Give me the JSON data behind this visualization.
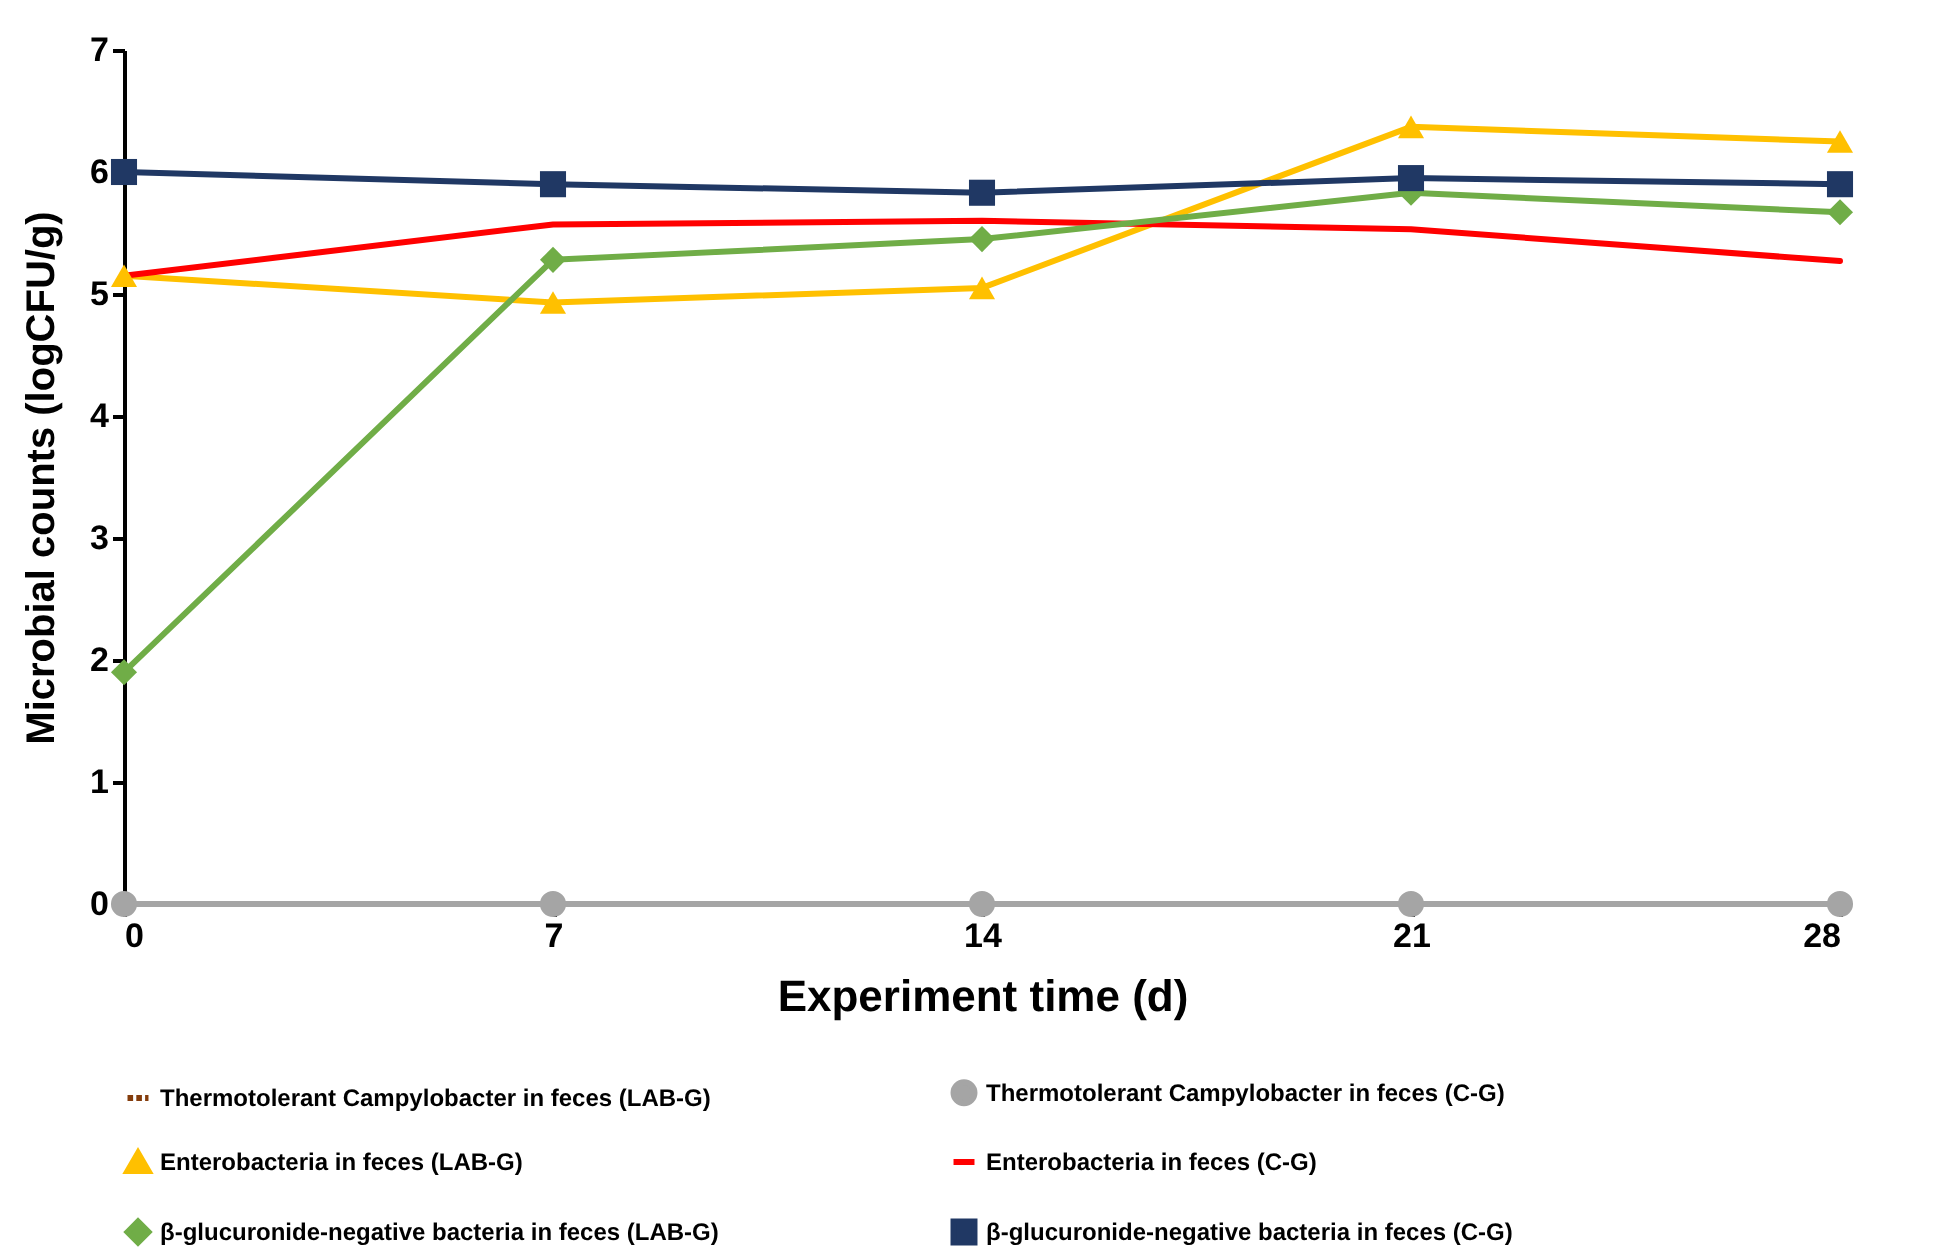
{
  "chart_data": {
    "type": "line",
    "xlabel": "Experiment time (d)",
    "ylabel": "Microbial counts (logCFU/g)",
    "x": [
      0,
      7,
      14,
      21,
      28
    ],
    "xlim": [
      0,
      28
    ],
    "xticks": [
      0,
      7,
      14,
      21,
      28
    ],
    "ylim": [
      0,
      7
    ],
    "yticks": [
      0,
      1,
      2,
      3,
      4,
      5,
      6,
      7
    ],
    "grid": false,
    "legend": "bottom",
    "series": [
      {
        "name": "Thermotolerant Campylobacter in feces (LAB-G)",
        "color": "#843c0c",
        "line_style": "dashed",
        "marker": "none",
        "values": [
          null,
          null,
          null,
          null,
          null
        ]
      },
      {
        "name": "Thermotolerant Campylobacter in feces (C-G)",
        "color": "#a5a5a5",
        "marker": "circle",
        "values": [
          0,
          0,
          0,
          0,
          0
        ]
      },
      {
        "name": "Enterobacteria in feces (LAB-G)",
        "color": "#ffc000",
        "marker": "triangle",
        "values": [
          5.15,
          4.93,
          5.05,
          6.37,
          6.25
        ]
      },
      {
        "name": "Enterobacteria in feces (C-G)",
        "color": "#ff0000",
        "marker": "none",
        "values": [
          5.15,
          5.57,
          5.6,
          5.53,
          5.27
        ]
      },
      {
        "name": "β-glucuronide-negative bacteria in feces (LAB-G)",
        "color": "#70ad47",
        "marker": "diamond",
        "values": [
          1.9,
          5.28,
          5.45,
          5.83,
          5.67
        ]
      },
      {
        "name": "β-glucuronide-negative bacteria in feces (C-G)",
        "color": "#203864",
        "marker": "square",
        "values": [
          6.0,
          5.9,
          5.83,
          5.95,
          5.9
        ]
      }
    ]
  }
}
